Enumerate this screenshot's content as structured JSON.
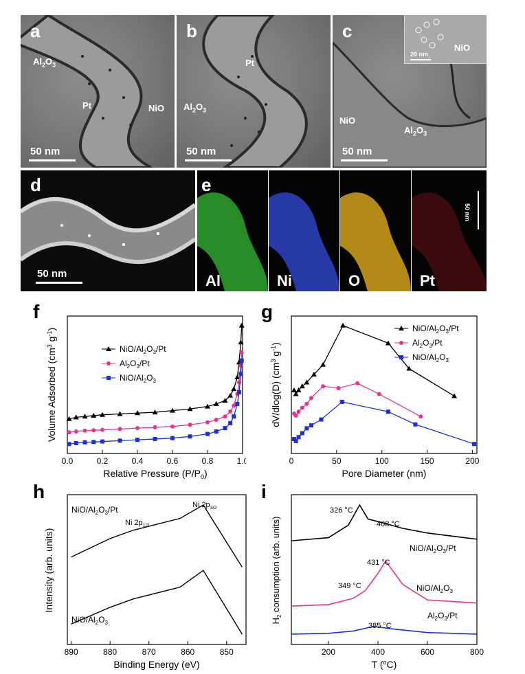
{
  "panels": {
    "a": {
      "label": "a",
      "annotations": [
        "Al",
        "2",
        "O",
        "3",
        "Pt",
        "NiO"
      ],
      "scale": "50 nm"
    },
    "b": {
      "label": "b",
      "annotations": [
        "Al",
        "2",
        "O",
        "3",
        "Pt"
      ],
      "scale": "50 nm"
    },
    "c": {
      "label": "c",
      "annotations": [
        "NiO",
        "Al",
        "2",
        "O",
        "3"
      ],
      "inset_scale": "20 nm",
      "inset_label": "NiO",
      "scale": "50 nm"
    },
    "d": {
      "label": "d",
      "scale": "50 nm"
    },
    "e": {
      "label": "e",
      "maps": [
        "Al",
        "Ni",
        "O",
        "Pt"
      ],
      "map_colors": [
        "#2ea32e",
        "#2a3fb8",
        "#d4a21a",
        "#a01818"
      ],
      "scale": "50 nm"
    },
    "f": {
      "label": "f",
      "xlabel": "Relative Pressure (P/P",
      "xlabel_sub": "0",
      "xlabel_end": ")",
      "ylabel": "Volume Adsorbed (cm",
      "ylabel_sup1": "3",
      "ylabel_mid": " g",
      "ylabel_sup2": "-1",
      "ylabel_end": ")"
    },
    "g": {
      "label": "g",
      "xlabel": "Pore Diameter (nm)",
      "ylabel": "dV/dlog(D) (cm",
      "ylabel_sup1": "3",
      "ylabel_mid": " g",
      "ylabel_sup2": "-1",
      "ylabel_end": ")"
    },
    "h": {
      "label": "h",
      "xlabel": "Binding Energy (eV)",
      "ylabel": "Intensity (arb. units)",
      "top_sample": "NiO/Al",
      "top_sample_end": "O",
      "bottom_sample": "NiO/Al",
      "bottom_sample_end": "O",
      "peak1": "Ni 2p",
      "peak1_sub": "1/2",
      "peak2": "Ni 2p",
      "peak2_sub": "3/2"
    },
    "i": {
      "label": "i",
      "xlabel": "T (",
      "xlabel_deg": "o",
      "xlabel_end": "C)",
      "ylabel": "H",
      "ylabel_sub": "2",
      "ylabel_end": " consumption (arb. units)",
      "ann": [
        "326 °C",
        "408 °C",
        "431 °C",
        "349 °C",
        "385 °C"
      ],
      "series_labels": [
        "NiO/Al",
        "O",
        "/Pt",
        "NiO/Al",
        "O",
        "Al",
        "O",
        "/Pt"
      ]
    }
  },
  "chart_data": [
    {
      "type": "scatter",
      "panel": "f",
      "xlabel": "Relative Pressure (P/P0)",
      "ylabel": "Volume Adsorbed (cm3 g-1)",
      "xlim": [
        0.0,
        1.0
      ],
      "xticks": [
        "0.0",
        "0.2",
        "0.4",
        "0.6",
        "0.8",
        "1.0"
      ],
      "series": [
        {
          "name": "NiO/Al2O3/Pt",
          "color": "#000000",
          "marker": "triangle",
          "x": [
            0.01,
            0.05,
            0.1,
            0.15,
            0.2,
            0.3,
            0.4,
            0.5,
            0.6,
            0.7,
            0.8,
            0.85,
            0.9,
            0.93,
            0.95,
            0.97,
            0.98,
            0.99,
            0.995
          ],
          "y": [
            3.4,
            3.5,
            3.55,
            3.6,
            3.65,
            3.7,
            3.75,
            3.8,
            3.9,
            4.0,
            4.15,
            4.3,
            4.5,
            4.8,
            5.2,
            5.9,
            6.8,
            8.0,
            9.0
          ]
        },
        {
          "name": "Al2O3/Pt",
          "color": "#e8338e",
          "marker": "circle",
          "x": [
            0.01,
            0.05,
            0.1,
            0.15,
            0.2,
            0.3,
            0.4,
            0.5,
            0.6,
            0.7,
            0.8,
            0.85,
            0.9,
            0.93,
            0.95,
            0.97,
            0.98,
            0.99,
            0.995
          ],
          "y": [
            2.6,
            2.65,
            2.7,
            2.72,
            2.75,
            2.8,
            2.85,
            2.9,
            2.95,
            3.05,
            3.2,
            3.35,
            3.55,
            3.85,
            4.2,
            4.9,
            5.6,
            6.6,
            7.4
          ]
        },
        {
          "name": "NiO/Al2O3",
          "color": "#1a2fd6",
          "marker": "square",
          "x": [
            0.01,
            0.05,
            0.1,
            0.15,
            0.2,
            0.3,
            0.4,
            0.5,
            0.6,
            0.7,
            0.8,
            0.85,
            0.9,
            0.93,
            0.95,
            0.97,
            0.98,
            0.99,
            0.995
          ],
          "y": [
            1.9,
            1.95,
            2.0,
            2.02,
            2.05,
            2.1,
            2.15,
            2.2,
            2.25,
            2.35,
            2.5,
            2.65,
            2.85,
            3.15,
            3.55,
            4.3,
            5.0,
            6.1,
            6.9
          ]
        }
      ]
    },
    {
      "type": "line",
      "panel": "g",
      "xlabel": "Pore Diameter (nm)",
      "ylabel": "dV/dlog(D) (cm3 g-1)",
      "xlim": [
        0,
        205
      ],
      "xticks": [
        "0",
        "50",
        "100",
        "150",
        "200"
      ],
      "series": [
        {
          "name": "NiO/Al2O3/Pt",
          "color": "#000000",
          "marker": "triangle",
          "x": [
            3,
            5,
            8,
            12,
            17,
            25,
            35,
            57,
            107,
            130,
            180
          ],
          "y": [
            4.2,
            4.0,
            4.2,
            4.4,
            4.6,
            5.0,
            5.5,
            7.5,
            6.6,
            5.3,
            3.9
          ]
        },
        {
          "name": "Al2O3/Pt",
          "color": "#e8338e",
          "marker": "circle",
          "x": [
            3,
            5,
            8,
            12,
            17,
            22,
            35,
            52,
            73,
            97,
            143
          ],
          "y": [
            3.0,
            2.9,
            3.1,
            3.3,
            3.5,
            3.8,
            4.4,
            4.3,
            4.55,
            4.0,
            2.85
          ]
        },
        {
          "name": "NiO/Al2O3",
          "color": "#1a2fd6",
          "marker": "square",
          "x": [
            3,
            5,
            8,
            12,
            17,
            22,
            33,
            56,
            107,
            137,
            202
          ],
          "y": [
            1.7,
            1.6,
            1.8,
            2.0,
            2.25,
            2.4,
            2.7,
            3.6,
            3.1,
            2.45,
            1.45
          ]
        }
      ]
    },
    {
      "type": "line",
      "panel": "h",
      "xlabel": "Binding Energy (eV)",
      "ylabel": "Intensity (arb. units)",
      "xlim": [
        891,
        845
      ],
      "xticks": [
        "890",
        "880",
        "870",
        "860",
        "850"
      ],
      "series": [
        {
          "name": "NiO/Al2O3/Pt",
          "color": "#000000",
          "x": [
            890,
            880,
            874,
            862,
            856,
            846
          ],
          "y": [
            6.3,
            7.4,
            7.9,
            8.6,
            9.4,
            5.7
          ]
        },
        {
          "name": "NiO/Al2O3",
          "color": "#000000",
          "x": [
            890,
            880,
            874,
            862,
            856,
            846
          ],
          "y": [
            2.3,
            3.3,
            3.8,
            4.5,
            5.5,
            1.7
          ]
        }
      ]
    },
    {
      "type": "line",
      "panel": "i",
      "xlabel": "T (oC)",
      "ylabel": "H2 consumption (arb. units)",
      "xlim": [
        50,
        800
      ],
      "xticks": [
        "200",
        "400",
        "600",
        "800"
      ],
      "series": [
        {
          "name": "NiO/Al2O3/Pt",
          "color": "#000000",
          "x": [
            50,
            200,
            280,
            326,
            360,
            408,
            500,
            600,
            800
          ],
          "y": [
            6.4,
            6.6,
            7.4,
            8.7,
            7.8,
            7.6,
            7.2,
            6.9,
            6.5
          ]
        },
        {
          "name": "NiO/Al2O3",
          "color": "#e8338e",
          "x": [
            50,
            200,
            300,
            349,
            400,
            431,
            500,
            600,
            800
          ],
          "y": [
            2.2,
            2.3,
            2.7,
            3.2,
            4.3,
            5.1,
            3.6,
            2.6,
            2.4
          ]
        },
        {
          "name": "Al2O3/Pt",
          "color": "#1a2fd6",
          "x": [
            50,
            200,
            300,
            385,
            450,
            600,
            800
          ],
          "y": [
            0.4,
            0.45,
            0.6,
            0.9,
            0.75,
            0.5,
            0.4
          ]
        }
      ]
    }
  ]
}
